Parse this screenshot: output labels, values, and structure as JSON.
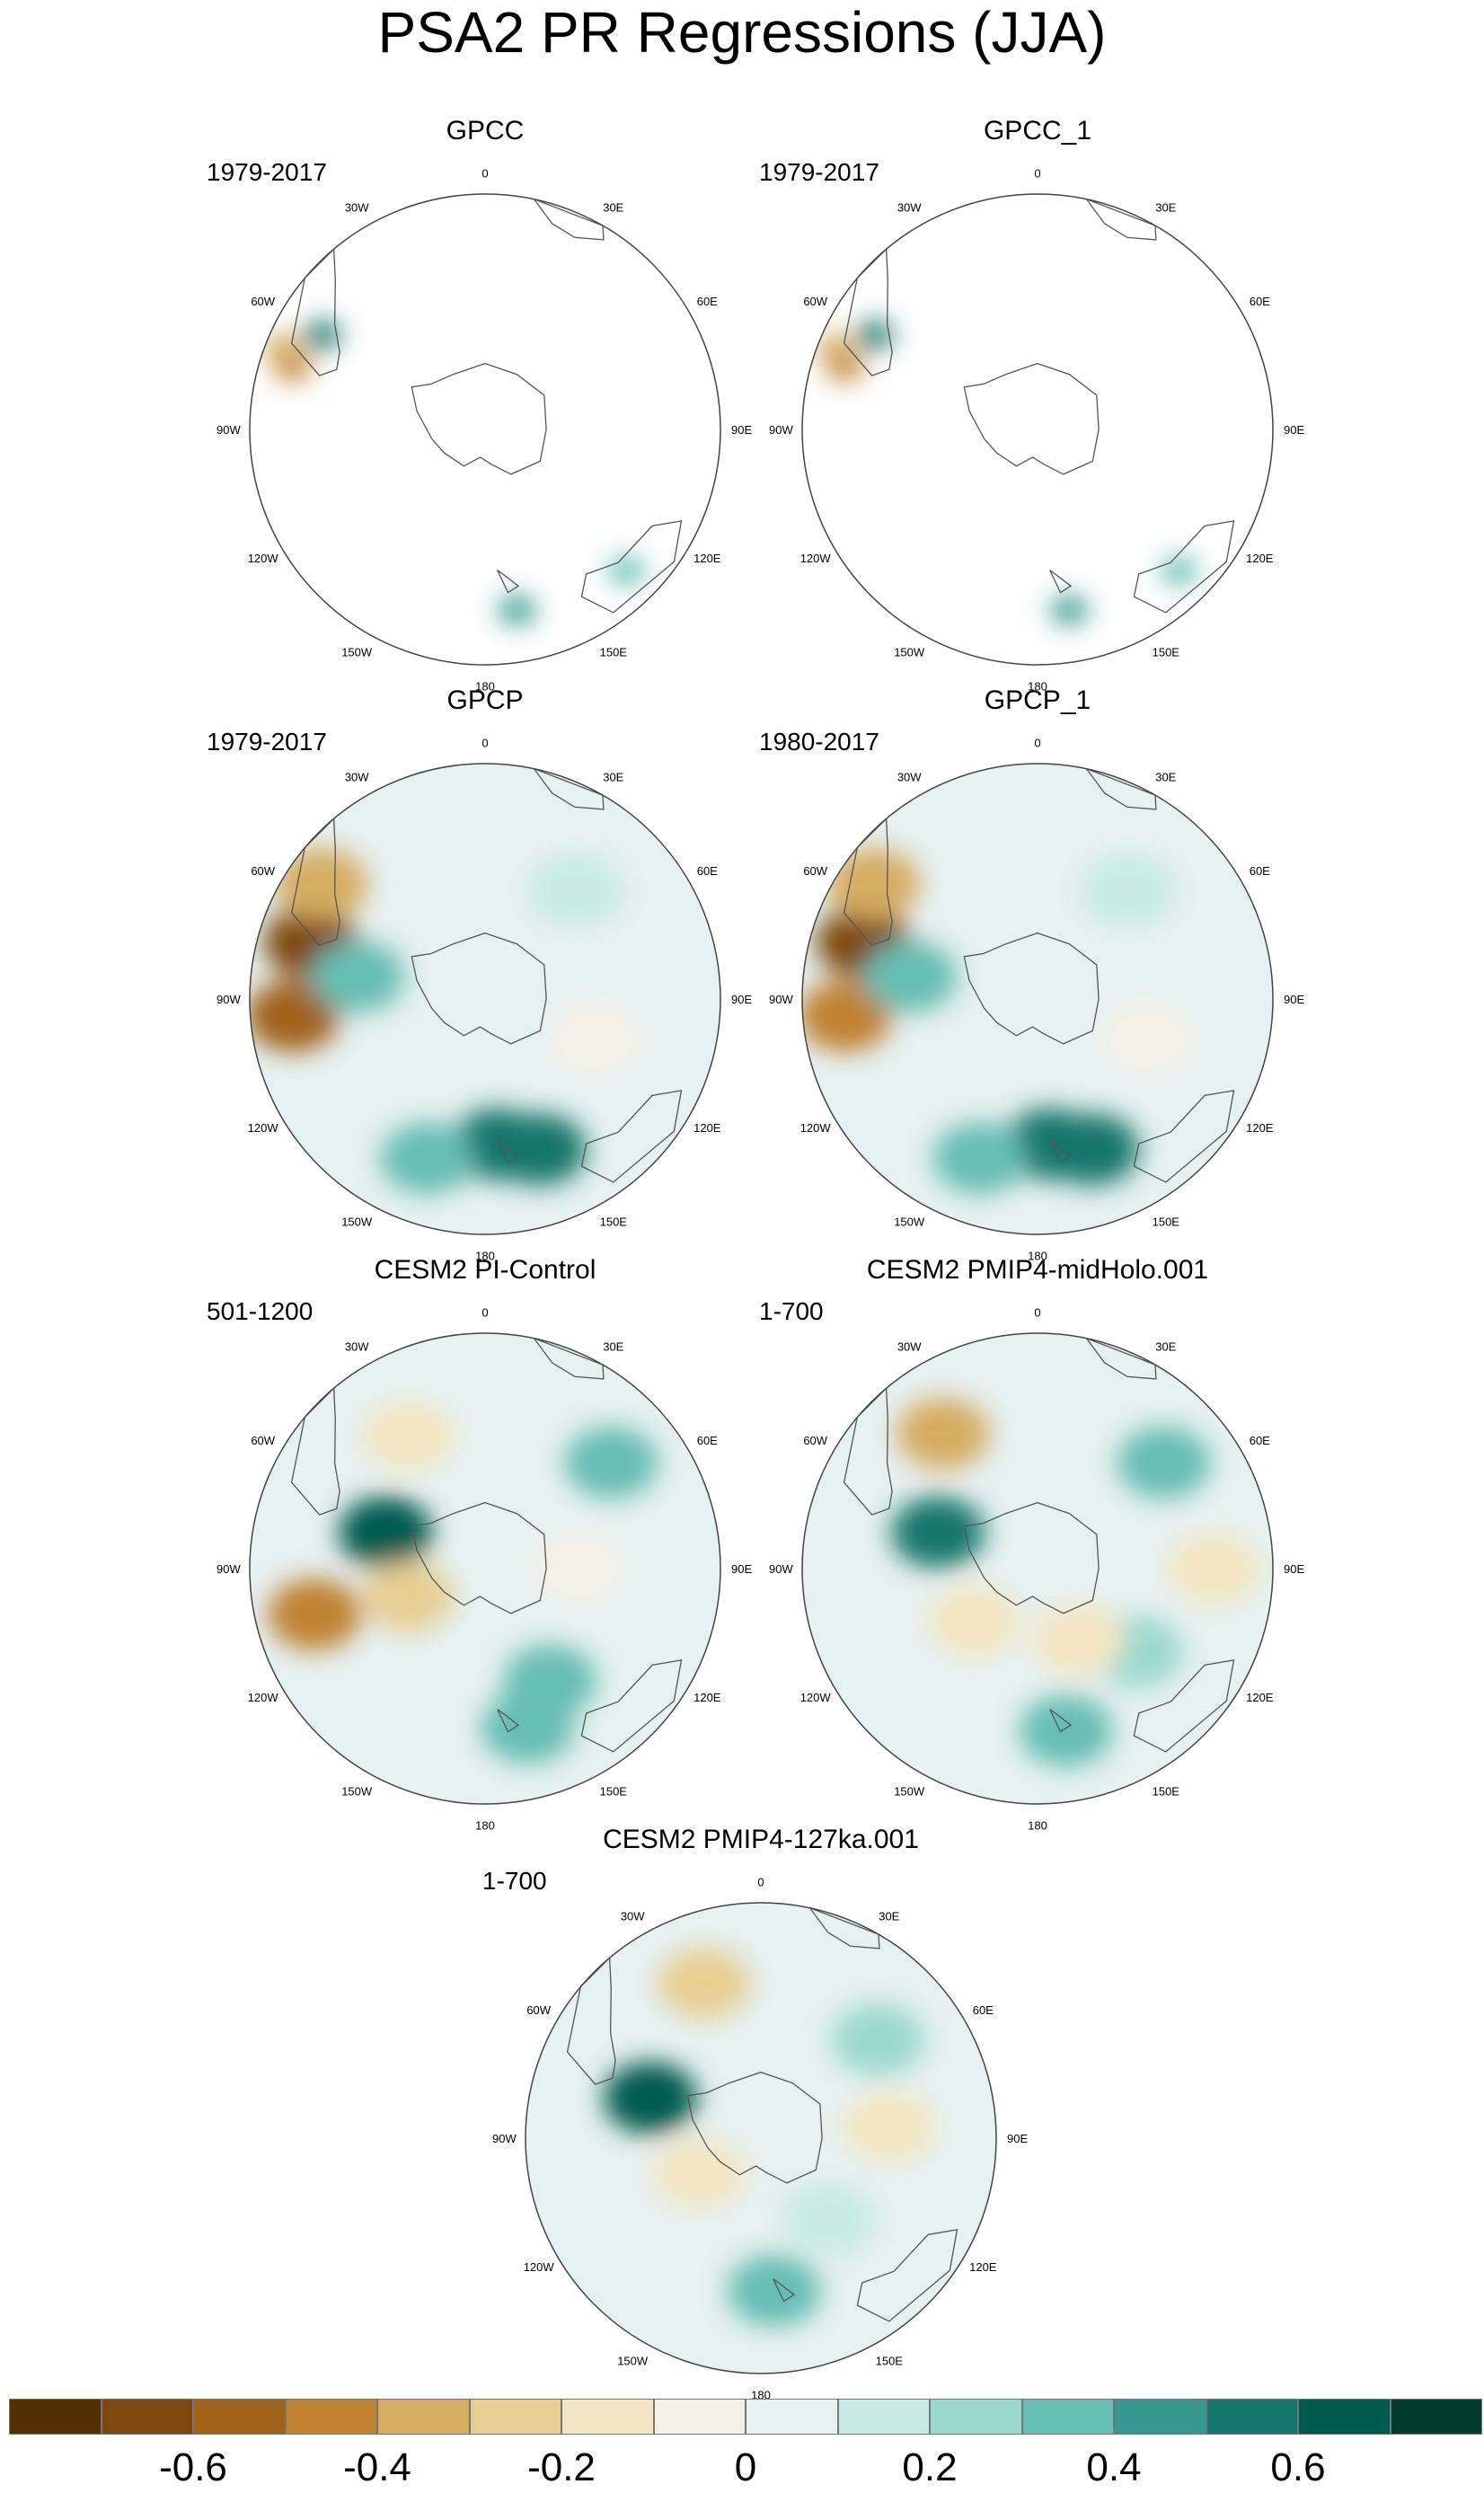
{
  "title": "PSA2 PR Regressions (JJA)",
  "map_labels": {
    "lon": [
      "0",
      "30E",
      "60E",
      "90E",
      "120E",
      "150E",
      "180",
      "150W",
      "120W",
      "90W",
      "60W",
      "30W"
    ]
  },
  "panels": [
    {
      "title": "GPCC",
      "period": "1979-2017",
      "pattern": "land_only",
      "features": [
        {
          "lon": -72,
          "r": 0.86,
          "val": -0.45
        },
        {
          "lon": -68,
          "r": 0.93,
          "val": -0.35
        },
        {
          "lon": -60,
          "r": 0.8,
          "val": 0.5
        },
        {
          "lon": 135,
          "r": 0.85,
          "val": 0.35
        },
        {
          "lon": 170,
          "r": 0.78,
          "val": 0.45
        }
      ]
    },
    {
      "title": "GPCC_1",
      "period": "1979-2017",
      "pattern": "land_only",
      "features": [
        {
          "lon": -72,
          "r": 0.86,
          "val": -0.45
        },
        {
          "lon": -68,
          "r": 0.93,
          "val": -0.35
        },
        {
          "lon": -60,
          "r": 0.8,
          "val": 0.5
        },
        {
          "lon": 135,
          "r": 0.85,
          "val": 0.35
        },
        {
          "lon": 170,
          "r": 0.78,
          "val": 0.45
        }
      ]
    },
    {
      "title": "GPCP",
      "period": "1979-2017",
      "pattern": "full",
      "features": [
        {
          "lon": -95,
          "r": 0.82,
          "val": -0.55
        },
        {
          "lon": -72,
          "r": 0.78,
          "val": -0.7
        },
        {
          "lon": -55,
          "r": 0.85,
          "val": -0.4
        },
        {
          "lon": -80,
          "r": 0.55,
          "val": 0.3
        },
        {
          "lon": 175,
          "r": 0.62,
          "val": 0.55
        },
        {
          "lon": 160,
          "r": 0.68,
          "val": 0.5
        },
        {
          "lon": -160,
          "r": 0.72,
          "val": 0.35
        },
        {
          "lon": 40,
          "r": 0.6,
          "val": 0.1
        },
        {
          "lon": 110,
          "r": 0.5,
          "val": -0.1
        }
      ]
    },
    {
      "title": "GPCP_1",
      "period": "1980-2017",
      "pattern": "full",
      "features": [
        {
          "lon": -95,
          "r": 0.82,
          "val": -0.5
        },
        {
          "lon": -72,
          "r": 0.78,
          "val": -0.65
        },
        {
          "lon": -55,
          "r": 0.85,
          "val": -0.35
        },
        {
          "lon": -80,
          "r": 0.55,
          "val": 0.3
        },
        {
          "lon": 175,
          "r": 0.62,
          "val": 0.55
        },
        {
          "lon": 160,
          "r": 0.68,
          "val": 0.5
        },
        {
          "lon": -160,
          "r": 0.72,
          "val": 0.35
        },
        {
          "lon": 40,
          "r": 0.6,
          "val": 0.1
        },
        {
          "lon": 110,
          "r": 0.5,
          "val": -0.1
        }
      ]
    },
    {
      "title": "CESM2 PI-Control",
      "period": "501-1200",
      "pattern": "full",
      "features": [
        {
          "lon": -105,
          "r": 0.75,
          "val": -0.5
        },
        {
          "lon": -70,
          "r": 0.45,
          "val": 0.65
        },
        {
          "lon": -30,
          "r": 0.65,
          "val": -0.2
        },
        {
          "lon": 50,
          "r": 0.7,
          "val": 0.3
        },
        {
          "lon": 150,
          "r": 0.55,
          "val": 0.35
        },
        {
          "lon": 165,
          "r": 0.7,
          "val": 0.3
        },
        {
          "lon": -110,
          "r": 0.35,
          "val": -0.25
        },
        {
          "lon": 90,
          "r": 0.4,
          "val": -0.1
        }
      ]
    },
    {
      "title": "CESM2 PMIP4-midHolo.001",
      "period": "1-700",
      "pattern": "full",
      "features": [
        {
          "lon": -35,
          "r": 0.7,
          "val": -0.35
        },
        {
          "lon": -70,
          "r": 0.45,
          "val": 0.6
        },
        {
          "lon": 50,
          "r": 0.7,
          "val": 0.3
        },
        {
          "lon": 90,
          "r": 0.75,
          "val": -0.15
        },
        {
          "lon": 170,
          "r": 0.7,
          "val": 0.3
        },
        {
          "lon": 130,
          "r": 0.55,
          "val": 0.2
        },
        {
          "lon": -130,
          "r": 0.35,
          "val": -0.2
        },
        {
          "lon": 150,
          "r": 0.35,
          "val": -0.15
        }
      ]
    },
    {
      "title": "CESM2 PMIP4-127ka.001",
      "period": "1-700",
      "pattern": "full",
      "features": [
        {
          "lon": -20,
          "r": 0.7,
          "val": -0.25
        },
        {
          "lon": -70,
          "r": 0.5,
          "val": 0.65
        },
        {
          "lon": 50,
          "r": 0.65,
          "val": 0.25
        },
        {
          "lon": 85,
          "r": 0.55,
          "val": -0.2
        },
        {
          "lon": 175,
          "r": 0.65,
          "val": 0.3
        },
        {
          "lon": -120,
          "r": 0.3,
          "val": -0.2
        },
        {
          "lon": 140,
          "r": 0.45,
          "val": 0.1
        }
      ]
    }
  ],
  "colorbar": {
    "colors": [
      "#543005",
      "#7f4810",
      "#a1621a",
      "#c08230",
      "#d6ac62",
      "#e7cf94",
      "#f4e6c2",
      "#f5f0e6",
      "#e6f1f1",
      "#c7eae5",
      "#9bd8cf",
      "#66bdb2",
      "#35978f",
      "#14766c",
      "#015a4e",
      "#003c30"
    ],
    "tick_labels": [
      "-0.6",
      "-0.4",
      "-0.2",
      "0",
      "0.2",
      "0.4",
      "0.6"
    ],
    "tick_values": [
      -0.6,
      -0.4,
      -0.2,
      0,
      0.2,
      0.4,
      0.6
    ],
    "range": [
      -0.8,
      0.8
    ]
  }
}
